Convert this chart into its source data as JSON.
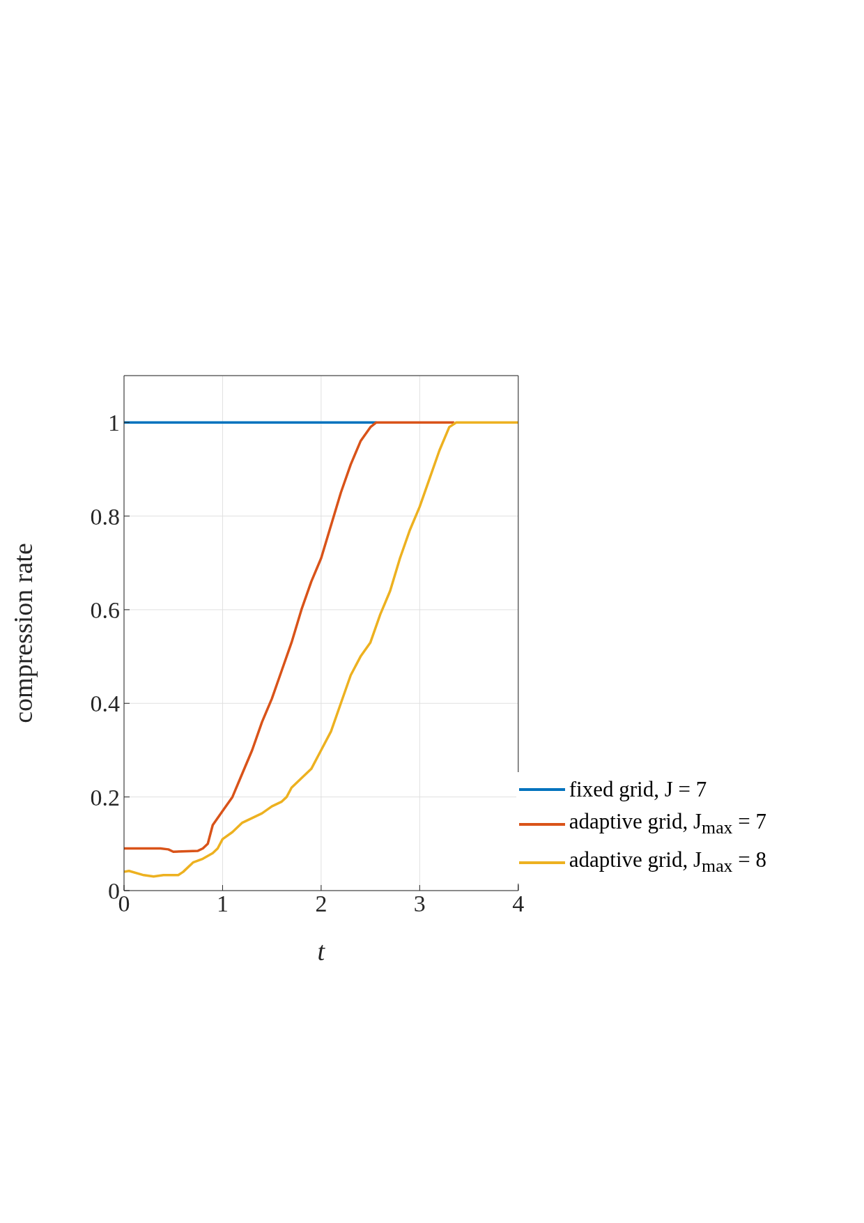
{
  "chart_data": {
    "type": "line",
    "xlabel": "t",
    "ylabel": "compression rate",
    "xlim": [
      0,
      4
    ],
    "xticks": [
      0,
      1,
      2,
      3,
      4
    ],
    "ylim": [
      0,
      1.1
    ],
    "yticks": [
      0,
      0.2,
      0.4,
      0.6,
      0.8,
      1
    ],
    "grid": true,
    "legend": "bottom right",
    "line_style": "solid",
    "marker": "none",
    "series": [
      {
        "name": "fixed grid, J = 7",
        "color": "#0072bd",
        "x": [
          0,
          0.5,
          1,
          1.5,
          2,
          2.56
        ],
        "values": [
          1,
          1,
          1,
          1,
          1,
          1
        ]
      },
      {
        "name": "adaptive grid, J$_{max}$ = 7",
        "color": "#d95319",
        "x": [
          0,
          0.37,
          0.45,
          0.5,
          0.75,
          0.8,
          0.85,
          0.9,
          1.0,
          1.1,
          1.2,
          1.3,
          1.4,
          1.5,
          1.6,
          1.7,
          1.8,
          1.9,
          2.0,
          2.1,
          2.2,
          2.3,
          2.4,
          2.5,
          2.56,
          3.35
        ],
        "values": [
          0.09,
          0.09,
          0.088,
          0.083,
          0.085,
          0.09,
          0.1,
          0.14,
          0.17,
          0.2,
          0.25,
          0.3,
          0.36,
          0.41,
          0.47,
          0.53,
          0.6,
          0.66,
          0.71,
          0.78,
          0.85,
          0.91,
          0.96,
          0.99,
          1,
          1
        ]
      },
      {
        "name": "adaptive grid, J$_{max}$ = 8",
        "color": "#edb120",
        "x": [
          0,
          0.05,
          0.2,
          0.3,
          0.4,
          0.55,
          0.6,
          0.7,
          0.8,
          0.9,
          0.95,
          1.0,
          1.1,
          1.2,
          1.3,
          1.4,
          1.5,
          1.6,
          1.65,
          1.7,
          1.8,
          1.9,
          2.0,
          2.1,
          2.2,
          2.3,
          2.4,
          2.5,
          2.6,
          2.7,
          2.8,
          2.9,
          3.0,
          3.1,
          3.2,
          3.3,
          3.37,
          4
        ],
        "values": [
          0.04,
          0.042,
          0.033,
          0.03,
          0.033,
          0.033,
          0.04,
          0.06,
          0.068,
          0.08,
          0.09,
          0.11,
          0.125,
          0.145,
          0.155,
          0.165,
          0.18,
          0.19,
          0.2,
          0.22,
          0.24,
          0.26,
          0.3,
          0.34,
          0.4,
          0.46,
          0.5,
          0.53,
          0.59,
          0.64,
          0.71,
          0.77,
          0.82,
          0.88,
          0.94,
          0.99,
          1,
          1
        ]
      }
    ]
  }
}
